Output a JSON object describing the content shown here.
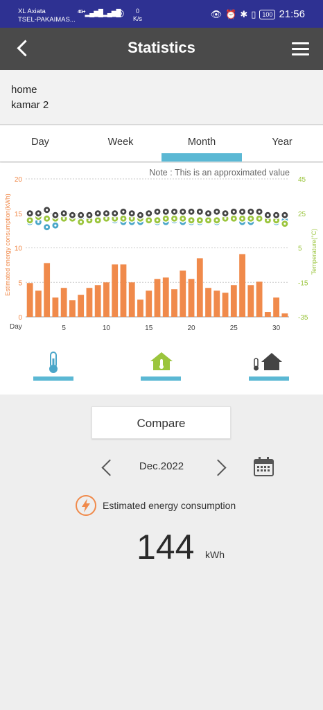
{
  "status_bar": {
    "carrier1": "XL Axiata",
    "carrier2": "TSEL-PAKAIMAS...",
    "net1": "4G+",
    "speed_value": "0",
    "speed_unit": "K/s",
    "battery": "100",
    "time": "21:56"
  },
  "app_bar": {
    "title": "Statistics"
  },
  "device": {
    "location": "home",
    "room": "kamar 2"
  },
  "tabs": [
    {
      "label": "Day",
      "active": false
    },
    {
      "label": "Week",
      "active": false
    },
    {
      "label": "Month",
      "active": true
    },
    {
      "label": "Year",
      "active": false
    }
  ],
  "chart_data": {
    "type": "bar",
    "note": "Note : This is an approximated value",
    "xlabel": "Day",
    "ylabel": "Estimated energy consumption(kWh)",
    "y2label": "Temperature(°C)",
    "x_ticks": [
      5,
      10,
      15,
      20,
      25,
      30
    ],
    "ylim": [
      0,
      20
    ],
    "y_ticks": [
      0,
      5,
      10,
      15,
      20
    ],
    "y2lim": [
      -35,
      45
    ],
    "y2_ticks": [
      -35,
      -15,
      5,
      25,
      45
    ],
    "grid": true,
    "colors": {
      "bar": "#f08a4b",
      "indoor": "#9bc53d",
      "outdoor": "#4aa6c9",
      "outdoor_indoor": "#444444"
    },
    "categories": [
      1,
      2,
      3,
      4,
      5,
      6,
      7,
      8,
      9,
      10,
      11,
      12,
      13,
      14,
      15,
      16,
      17,
      18,
      19,
      20,
      21,
      22,
      23,
      24,
      25,
      26,
      27,
      28,
      29,
      30,
      31
    ],
    "values": [
      4.9,
      3.8,
      7.8,
      2.8,
      4.2,
      2.4,
      3.2,
      4.2,
      4.6,
      5.0,
      7.6,
      7.6,
      5.0,
      2.5,
      3.8,
      5.5,
      5.7,
      4.0,
      6.7,
      5.5,
      8.5,
      4.2,
      3.8,
      3.5,
      4.6,
      9.1,
      4.6,
      5.1,
      0.7,
      2.8,
      0.5
    ],
    "series": [
      {
        "name": "dark",
        "axis": "temperature",
        "values": [
          25,
          25,
          27,
          24,
          25,
          24,
          24,
          24,
          25,
          25,
          25,
          26,
          25,
          24,
          25,
          26,
          26,
          26,
          26,
          26,
          26,
          25,
          26,
          25,
          26,
          26,
          26,
          26,
          24,
          24,
          24
        ]
      },
      {
        "name": "green",
        "axis": "temperature",
        "values": [
          21,
          23,
          22,
          22,
          22,
          22,
          20,
          21,
          21,
          22,
          22,
          22,
          22,
          22,
          21,
          21,
          22,
          22,
          22,
          21,
          21,
          21,
          21,
          22,
          22,
          22,
          22,
          22,
          21,
          21,
          19
        ]
      },
      {
        "name": "blue",
        "axis": "temperature",
        "values": [
          20,
          20,
          17,
          18,
          22,
          22,
          22,
          22,
          22,
          22,
          21,
          20,
          20,
          20,
          21,
          20,
          20,
          21,
          20,
          20,
          20,
          22,
          20,
          22,
          22,
          20,
          20,
          22,
          22,
          20,
          21
        ]
      }
    ]
  },
  "legend": [
    {
      "icon": "thermometer-icon",
      "color": "#4aa6c9"
    },
    {
      "icon": "home-thermometer-icon",
      "color": "#9bc53d"
    },
    {
      "icon": "thermometer-house-icon",
      "color": "#444444"
    }
  ],
  "compare": {
    "label": "Compare"
  },
  "period": {
    "label": "Dec.2022"
  },
  "consumption": {
    "label": "Estimated energy consumption",
    "value": "144",
    "unit": "kWh"
  }
}
